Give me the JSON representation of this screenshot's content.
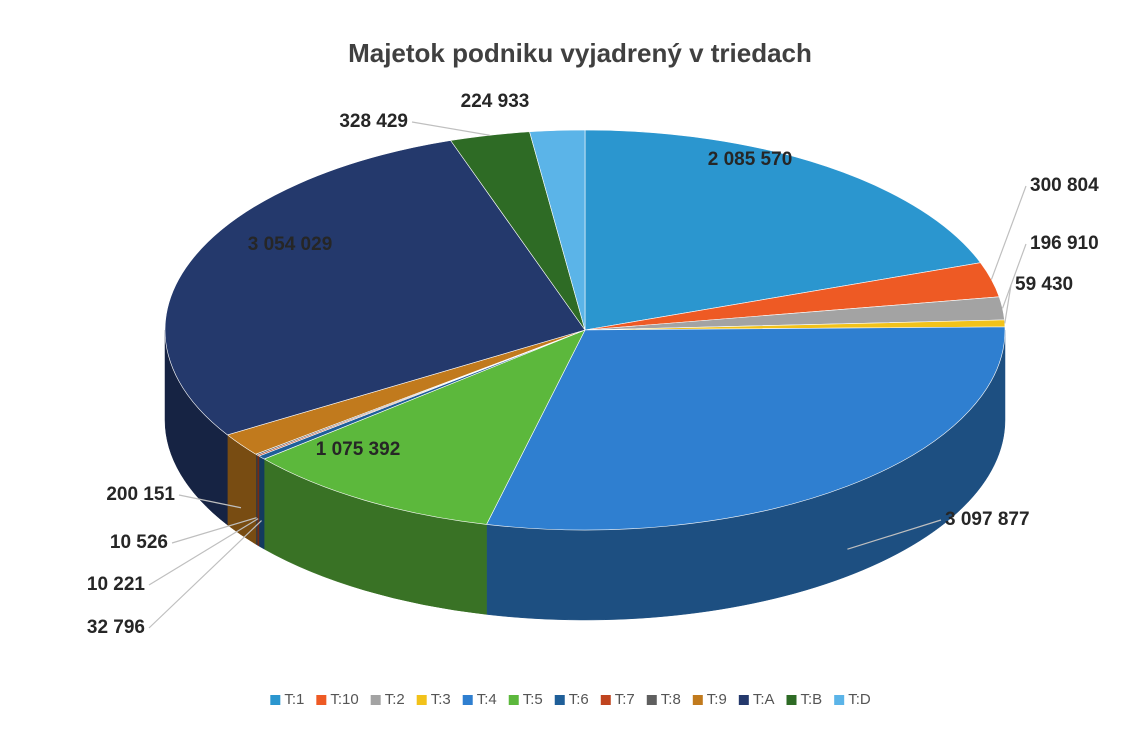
{
  "chart_data": {
    "type": "pie3d",
    "title": "Majetok podniku vyjadrený v triedach",
    "categories": [
      "T:1",
      "T:10",
      "T:2",
      "T:3",
      "T:4",
      "T:5",
      "T:6",
      "T:7",
      "T:8",
      "T:9",
      "T:A",
      "T:B",
      "T:D"
    ],
    "values": [
      2085570,
      300804,
      196910,
      59430,
      3097877,
      1075392,
      32796,
      10221,
      10526,
      200151,
      3054029,
      328429,
      224933
    ],
    "value_labels": [
      "2 085 570",
      "300 804",
      "196 910",
      "59 430",
      "3 097 877",
      "1 075 392",
      "32 796",
      "10 221",
      "10 526",
      "200 151",
      "3 054 029",
      "328 429",
      "224 933"
    ],
    "colors": [
      "#2b96cf",
      "#ee5a24",
      "#a3a3a3",
      "#f2c21a",
      "#2f7fd0",
      "#5cb83c",
      "#1f5f99",
      "#c0441f",
      "#5f5f5f",
      "#c17a1d",
      "#24396c",
      "#2e6b25",
      "#5bb4e8"
    ],
    "legend": "bottom"
  }
}
